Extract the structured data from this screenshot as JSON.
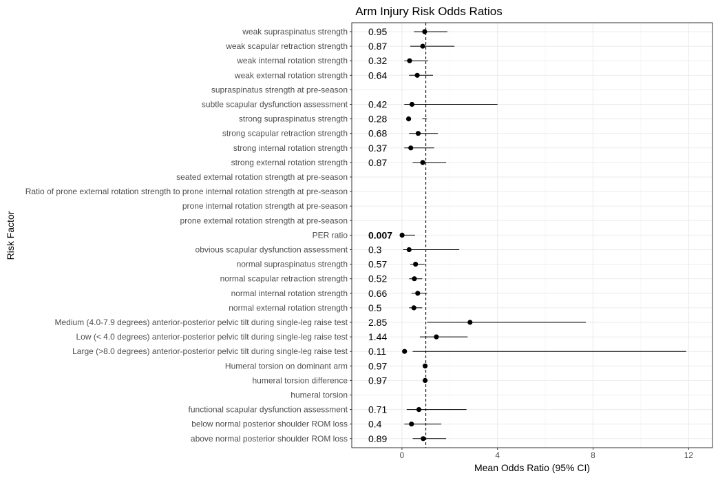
{
  "chart_data": {
    "type": "scatter",
    "subtype": "forest-plot",
    "title": "Arm Injury Risk Odds Ratios",
    "xlabel": "Mean Odds Ratio (95% CI)",
    "ylabel": "Risk Factor",
    "xlim": [
      -2.1,
      13.0
    ],
    "xticks": [
      0,
      4,
      8,
      12
    ],
    "reference_line": 1,
    "grid": true,
    "theme": "bw",
    "rows": [
      {
        "label": "weak supraspinatus strength",
        "or": 0.95,
        "lower": 0.5,
        "upper": 1.9,
        "text": "0.95",
        "bold": false
      },
      {
        "label": "weak scapular retraction strength",
        "or": 0.87,
        "lower": 0.35,
        "upper": 2.2,
        "text": "0.87",
        "bold": false
      },
      {
        "label": "weak internal rotation strength",
        "or": 0.32,
        "lower": 0.1,
        "upper": 1.1,
        "text": "0.32",
        "bold": false
      },
      {
        "label": "weak external rotation strength",
        "or": 0.64,
        "lower": 0.3,
        "upper": 1.3,
        "text": "0.64",
        "bold": false
      },
      {
        "label": "supraspinatus strength at pre-season",
        "or": null,
        "lower": null,
        "upper": null,
        "text": "",
        "bold": false
      },
      {
        "label": "subtle scapular dysfunction assessment",
        "or": 0.42,
        "lower": 0.1,
        "upper": 4.0,
        "text": "0.42",
        "bold": false
      },
      {
        "label": "strong supraspinatus strength",
        "or": 0.28,
        "lower": 0.85,
        "upper": 1.05,
        "text": "0.28",
        "bold": false
      },
      {
        "label": "strong scapular retraction strength",
        "or": 0.68,
        "lower": 0.3,
        "upper": 1.5,
        "text": "0.68",
        "bold": false
      },
      {
        "label": "strong internal rotation strength",
        "or": 0.37,
        "lower": 0.1,
        "upper": 1.35,
        "text": "0.37",
        "bold": false
      },
      {
        "label": "strong external rotation strength",
        "or": 0.87,
        "lower": 0.45,
        "upper": 1.85,
        "text": "0.87",
        "bold": false
      },
      {
        "label": "seated external rotation strength at pre-season",
        "or": null,
        "lower": null,
        "upper": null,
        "text": "",
        "bold": false
      },
      {
        "label": "Ratio of prone external rotation strength to prone internal rotation strength at pre-season",
        "or": null,
        "lower": null,
        "upper": null,
        "text": "",
        "bold": false
      },
      {
        "label": "prone internal rotation strength at pre-season",
        "or": null,
        "lower": null,
        "upper": null,
        "text": "",
        "bold": false
      },
      {
        "label": "prone external rotation strength at pre-season",
        "or": null,
        "lower": null,
        "upper": null,
        "text": "",
        "bold": false
      },
      {
        "label": "PER ratio",
        "or": 0.007,
        "lower": 0.0,
        "upper": 0.55,
        "text": "0.007",
        "bold": true
      },
      {
        "label": "obvious scapular dysfunction assessment",
        "or": 0.3,
        "lower": 0.05,
        "upper": 2.4,
        "text": "0.3",
        "bold": false
      },
      {
        "label": "normal supraspinatus strength",
        "or": 0.57,
        "lower": 0.35,
        "upper": 0.95,
        "text": "0.57",
        "bold": false
      },
      {
        "label": "normal scapular retraction strength",
        "or": 0.52,
        "lower": 0.3,
        "upper": 0.85,
        "text": "0.52",
        "bold": false
      },
      {
        "label": "normal internal rotation strength",
        "or": 0.66,
        "lower": 0.4,
        "upper": 1.05,
        "text": "0.66",
        "bold": false
      },
      {
        "label": "normal external rotation strength",
        "or": 0.5,
        "lower": 0.3,
        "upper": 0.85,
        "text": "0.5",
        "bold": false
      },
      {
        "label": "Medium (4.0-7.9 degrees) anterior-posterior pelvic tilt during single-leg raise test",
        "or": 2.85,
        "lower": 1.05,
        "upper": 7.7,
        "text": "2.85",
        "bold": false
      },
      {
        "label": "Low (< 4.0 degrees) anterior-posterior pelvic tilt during single-leg raise test",
        "or": 1.44,
        "lower": 0.75,
        "upper": 2.75,
        "text": "1.44",
        "bold": false
      },
      {
        "label": "Large (>8.0 degrees) anterior-posterior pelvic tilt during single-leg raise test",
        "or": 0.11,
        "lower": 0.45,
        "upper": 11.9,
        "text": "0.11",
        "bold": false
      },
      {
        "label": "Humeral torsion on dominant arm",
        "or": 0.97,
        "lower": 0.93,
        "upper": 1.02,
        "text": "0.97",
        "bold": false
      },
      {
        "label": "humeral torsion difference",
        "or": 0.97,
        "lower": 0.93,
        "upper": 1.02,
        "text": "0.97",
        "bold": false
      },
      {
        "label": "humeral torsion",
        "or": null,
        "lower": null,
        "upper": null,
        "text": "",
        "bold": false
      },
      {
        "label": "functional scapular dysfunction assessment",
        "or": 0.71,
        "lower": 0.2,
        "upper": 2.7,
        "text": "0.71",
        "bold": false
      },
      {
        "label": "below normal posterior shoulder ROM loss",
        "or": 0.4,
        "lower": 0.1,
        "upper": 1.65,
        "text": "0.4",
        "bold": false
      },
      {
        "label": "above normal posterior shoulder ROM loss",
        "or": 0.89,
        "lower": 0.45,
        "upper": 1.85,
        "text": "0.89",
        "bold": false
      }
    ]
  }
}
